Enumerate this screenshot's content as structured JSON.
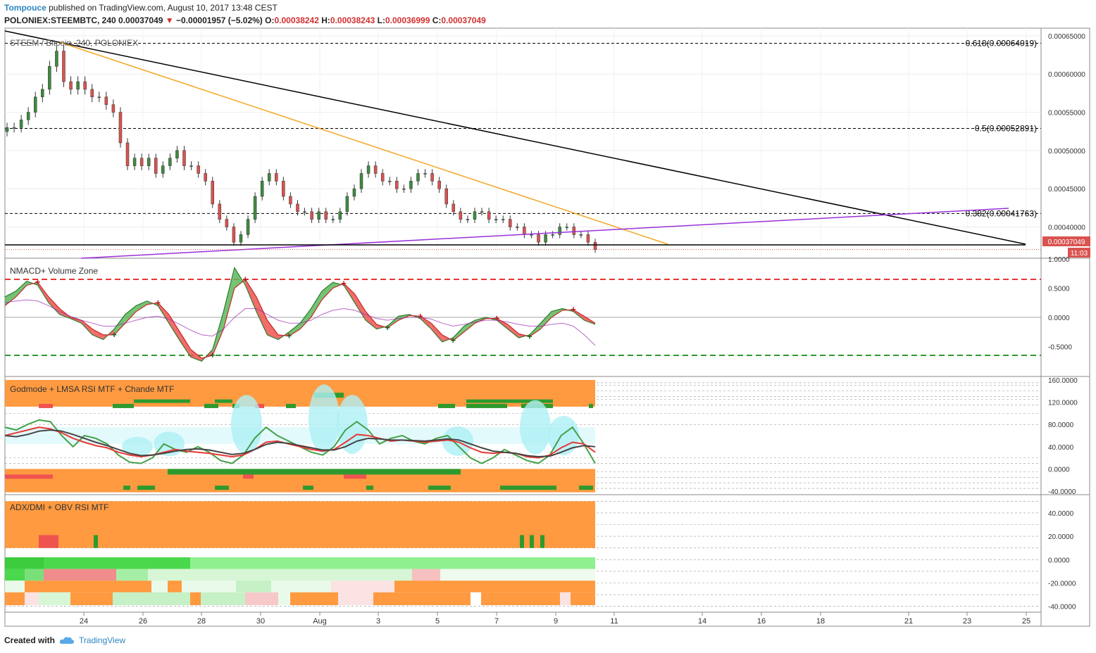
{
  "header": {
    "author": "Tompouce",
    "published_text": "published on TradingView.com, August 10, 2017 13:48 CEST",
    "symbol_line": "POLONIEX:STEEMBTC, 240",
    "last": "0.00037049",
    "change": "−0.00001957 (−5.02%)",
    "o_label": "O:",
    "o": "0.00038242",
    "h_label": "H:",
    "h": "0.00038243",
    "l_label": "L:",
    "l": "0.00036999",
    "c_label": "C:",
    "c": "0.00037049"
  },
  "colors": {
    "up": "#3f8a3f",
    "down": "#d9534f",
    "accent_blue": "#2e86c1",
    "fib": "#000000",
    "trend_orange": "#f5a623",
    "trend_purple": "#9b30d9",
    "orange_fill": "#ff9a40",
    "dark_green": "#2e9a2e",
    "cyan": "#aef0f5"
  },
  "footer": {
    "created_with": "Created with",
    "brand": "TradingView",
    "logo_icon": "cloud-logo-icon"
  },
  "chart_data": [
    {
      "type": "candlestick",
      "title": "STEEM / Bitcoin, 240, POLONIEX",
      "ylim": [
        0.00036,
        0.00066
      ],
      "y_ticks": [
        "0.00065000",
        "0.00060000",
        "0.00055000",
        "0.00050000",
        "0.00045000",
        "0.00040000"
      ],
      "x_ticks": [
        "24",
        "26",
        "28",
        "30",
        "Aug",
        "3",
        "5",
        "7",
        "9",
        "11",
        "14",
        "16",
        "18",
        "21",
        "23",
        "25"
      ],
      "last_price_label": "0.00037049",
      "countdown_label": "11:03",
      "fib_levels": [
        {
          "label": "0.618(0.00064019)",
          "value": 0.00064019
        },
        {
          "label": "0.5(0.00052891)",
          "value": 0.00052891
        },
        {
          "label": "0.382(0.00041763)",
          "value": 0.00041763
        }
      ],
      "closes": [
        0.00053,
        0.00053,
        0.00054,
        0.00055,
        0.00057,
        0.00058,
        0.00061,
        0.00063,
        0.00059,
        0.00058,
        0.00059,
        0.00058,
        0.00057,
        0.00057,
        0.00056,
        0.00055,
        0.00051,
        0.00048,
        0.00049,
        0.00048,
        0.00049,
        0.00047,
        0.00048,
        0.00049,
        0.0005,
        0.00048,
        0.00048,
        0.00047,
        0.00046,
        0.00043,
        0.00041,
        0.0004,
        0.00038,
        0.00039,
        0.00041,
        0.00044,
        0.00046,
        0.00047,
        0.00046,
        0.00044,
        0.00043,
        0.00042,
        0.00042,
        0.00041,
        0.00042,
        0.00041,
        0.00041,
        0.00042,
        0.00044,
        0.00045,
        0.00047,
        0.00048,
        0.00047,
        0.00046,
        0.00046,
        0.00045,
        0.00045,
        0.00046,
        0.00047,
        0.00047,
        0.00046,
        0.00045,
        0.00043,
        0.00042,
        0.00041,
        0.00041,
        0.00042,
        0.00042,
        0.00041,
        0.00041,
        0.00041,
        0.0004,
        0.0004,
        0.00039,
        0.00039,
        0.00038,
        0.00039,
        0.00039,
        0.0004,
        0.0004,
        0.00039,
        0.00039,
        0.00038,
        0.00037049
      ]
    },
    {
      "type": "line",
      "title": "NMACD+ Volume Zone",
      "ylim": [
        -1.0,
        1.0
      ],
      "y_ticks": [
        "1.0000",
        "0.5000",
        "0.0000",
        "-0.5000"
      ],
      "levels": [
        0.65,
        -0.65
      ],
      "series": [
        {
          "values": [
            0.35,
            0.45,
            0.62,
            0.55,
            0.25,
            0.05,
            -0.02,
            -0.1,
            -0.3,
            -0.38,
            -0.2,
            0.05,
            0.2,
            0.28,
            0.2,
            -0.1,
            -0.4,
            -0.68,
            -0.75,
            -0.55,
            0.1,
            0.85,
            0.55,
            0.1,
            -0.3,
            -0.38,
            -0.25,
            -0.1,
            0.15,
            0.45,
            0.6,
            0.55,
            0.25,
            -0.05,
            -0.2,
            -0.15,
            0.02,
            0.05,
            -0.02,
            -0.2,
            -0.42,
            -0.35,
            -0.15,
            -0.05,
            0.0,
            -0.05,
            -0.2,
            -0.35,
            -0.3,
            -0.1,
            0.1,
            0.15,
            0.1,
            -0.05,
            -0.12
          ]
        },
        {
          "values": [
            0.2,
            0.35,
            0.55,
            0.6,
            0.35,
            0.15,
            0.0,
            -0.05,
            -0.2,
            -0.3,
            -0.3,
            -0.1,
            0.1,
            0.22,
            0.25,
            0.05,
            -0.25,
            -0.55,
            -0.7,
            -0.65,
            -0.2,
            0.5,
            0.65,
            0.35,
            -0.05,
            -0.3,
            -0.32,
            -0.2,
            0.0,
            0.3,
            0.5,
            0.58,
            0.4,
            0.1,
            -0.12,
            -0.18,
            -0.05,
            0.03,
            0.02,
            -0.1,
            -0.3,
            -0.4,
            -0.25,
            -0.1,
            -0.02,
            -0.02,
            -0.12,
            -0.28,
            -0.33,
            -0.2,
            0.0,
            0.12,
            0.13,
            0.02,
            -0.1
          ]
        },
        {
          "values": [
            0.25,
            0.28,
            0.3,
            0.28,
            0.2,
            0.1,
            0.02,
            -0.05,
            -0.1,
            -0.15,
            -0.15,
            -0.1,
            -0.05,
            0.0,
            0.02,
            -0.03,
            -0.12,
            -0.22,
            -0.3,
            -0.32,
            -0.2,
            0.0,
            0.15,
            0.15,
            0.05,
            -0.05,
            -0.1,
            -0.1,
            -0.05,
            0.05,
            0.12,
            0.15,
            0.12,
            0.05,
            -0.02,
            -0.05,
            -0.02,
            0.0,
            0.0,
            -0.03,
            -0.1,
            -0.15,
            -0.12,
            -0.08,
            -0.05,
            -0.05,
            -0.08,
            -0.12,
            -0.15,
            -0.15,
            -0.12,
            -0.1,
            -0.15,
            -0.3,
            -0.48
          ]
        }
      ]
    },
    {
      "type": "line",
      "title": "Godmode + LMSA RSI MTF + Chande MTF",
      "ylim": [
        -45,
        165
      ],
      "y_ticks": [
        "160.0000",
        "120.0000",
        "80.0000",
        "40.0000",
        "0.0000",
        "-40.0000"
      ],
      "series": [
        {
          "values": [
            75,
            70,
            80,
            88,
            85,
            60,
            40,
            60,
            55,
            45,
            25,
            12,
            10,
            20,
            45,
            35,
            30,
            40,
            30,
            15,
            10,
            25,
            55,
            75,
            60,
            50,
            40,
            30,
            25,
            40,
            70,
            85,
            70,
            45,
            55,
            60,
            50,
            45,
            55,
            60,
            40,
            20,
            10,
            20,
            35,
            25,
            15,
            10,
            25,
            60,
            75,
            45,
            10
          ]
        },
        {
          "values": [
            60,
            65,
            70,
            75,
            72,
            65,
            55,
            48,
            42,
            38,
            30,
            25,
            22,
            25,
            30,
            35,
            32,
            30,
            28,
            25,
            22,
            25,
            35,
            48,
            50,
            45,
            40,
            35,
            32,
            35,
            48,
            62,
            60,
            55,
            50,
            52,
            50,
            48,
            50,
            52,
            48,
            38,
            30,
            28,
            30,
            28,
            22,
            20,
            25,
            38,
            48,
            45,
            30
          ]
        },
        {
          "values": [
            60,
            58,
            62,
            68,
            70,
            68,
            62,
            55,
            48,
            42,
            35,
            28,
            24,
            25,
            28,
            32,
            35,
            36,
            34,
            30,
            26,
            28,
            35,
            44,
            48,
            46,
            42,
            38,
            34,
            34,
            40,
            50,
            55,
            54,
            52,
            52,
            51,
            50,
            52,
            54,
            52,
            45,
            38,
            32,
            30,
            28,
            24,
            22,
            23,
            30,
            38,
            42,
            40
          ]
        }
      ]
    },
    {
      "type": "heatmap",
      "title": "ADX/DMI + OBV RSI MTF",
      "ylim": [
        -45,
        55
      ],
      "y_ticks": [
        "40.0000",
        "20.0000",
        "0.0000",
        "-20.0000",
        "-40.0000"
      ]
    }
  ]
}
